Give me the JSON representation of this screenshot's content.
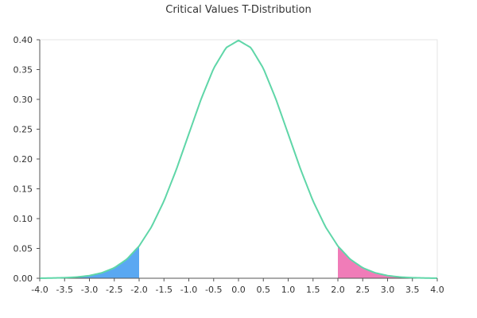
{
  "chart_data": {
    "type": "area",
    "title": "Critical Values T-Distribution",
    "xlabel": "",
    "ylabel": "",
    "xlim": [
      -4.0,
      4.0
    ],
    "ylim": [
      0.0,
      0.4
    ],
    "x_ticks": [
      "-4.0",
      "-3.5",
      "-3.0",
      "-2.5",
      "-2.0",
      "-1.5",
      "-1.0",
      "-0.5",
      "0.0",
      "0.5",
      "1.0",
      "1.5",
      "2.0",
      "2.5",
      "3.0",
      "3.5",
      "4.0"
    ],
    "y_ticks": [
      "0.00",
      "0.05",
      "0.10",
      "0.15",
      "0.20",
      "0.25",
      "0.30",
      "0.35",
      "0.40"
    ],
    "grid": false,
    "legend": "none",
    "series": [
      {
        "x": [
          -4.0,
          -3.75,
          -3.5,
          -3.25,
          -3.0,
          -2.75,
          -2.5,
          -2.25,
          -2.0,
          -1.75,
          -1.5,
          -1.25,
          -1.0,
          -0.75,
          -0.5,
          -0.25,
          0.0,
          0.25,
          0.5,
          0.75,
          1.0,
          1.25,
          1.5,
          1.75,
          2.0,
          2.25,
          2.5,
          2.75,
          3.0,
          3.25,
          3.5,
          3.75,
          4.0
        ],
        "y": [
          0.0001,
          0.0004,
          0.0009,
          0.002,
          0.0044,
          0.0091,
          0.0175,
          0.0317,
          0.054,
          0.0863,
          0.1295,
          0.1826,
          0.242,
          0.3011,
          0.3521,
          0.3867,
          0.3989,
          0.3867,
          0.3521,
          0.3011,
          0.242,
          0.1826,
          0.1295,
          0.0863,
          0.054,
          0.0317,
          0.0175,
          0.0091,
          0.0044,
          0.002,
          0.0009,
          0.0004,
          0.0001
        ],
        "color": "#5fd6a8"
      }
    ],
    "shaded_regions": [
      {
        "from": -4.0,
        "to": -2.0,
        "color": "#5aa8f2"
      },
      {
        "from": 2.0,
        "to": 4.0,
        "color": "#f07cb8"
      }
    ]
  }
}
